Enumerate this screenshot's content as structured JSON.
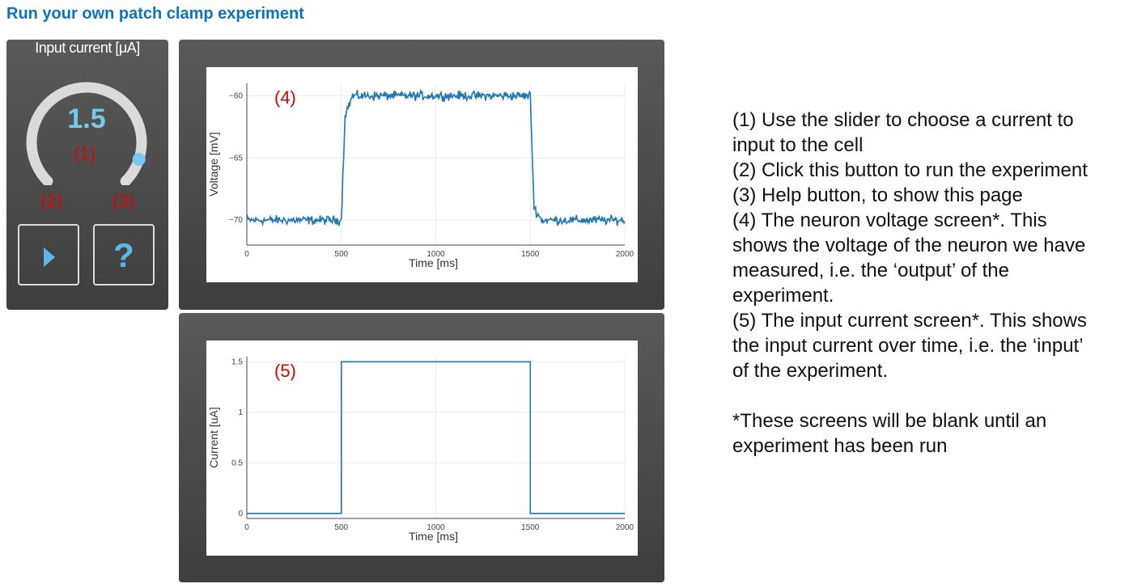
{
  "page": {
    "title": "Run your own patch clamp experiment"
  },
  "controls": {
    "title": "Input current [μA]",
    "slider_value": "1.5",
    "slider_fraction": 0.9,
    "run_icon": "play-icon",
    "help_glyph": "?",
    "annotations": {
      "slider": "(1)",
      "run": "(2)",
      "help": "(3)"
    }
  },
  "plots": {
    "voltage": {
      "annotation": "(4)",
      "ylabel": "Voltage [mV]",
      "xlabel": "Time [ms]",
      "color": "#1f77b4",
      "xticks": [
        "0",
        "500",
        "1000",
        "1500",
        "2000"
      ],
      "yticks": [
        "−60",
        "−65",
        "−70"
      ]
    },
    "current": {
      "annotation": "(5)",
      "ylabel": "Current [uA]",
      "xlabel": "Time [ms]",
      "color": "#1f77b4",
      "xticks": [
        "0",
        "500",
        "1000",
        "1500",
        "2000"
      ],
      "yticks": [
        "1.5",
        "1",
        "0.5",
        "0"
      ]
    }
  },
  "chart_data": [
    {
      "type": "line",
      "xlabel": "Time [ms]",
      "ylabel": "Voltage [mV]",
      "xlim": [
        0,
        2000
      ],
      "ylim": [
        -72,
        -59
      ],
      "grid": true,
      "x": [
        0,
        490,
        500,
        520,
        560,
        1490,
        1500,
        1520,
        1560,
        2000
      ],
      "y": [
        -70,
        -70,
        -70,
        -61.5,
        -60,
        -60,
        -60,
        -69,
        -70,
        -70
      ],
      "noise_mV": 0.35
    },
    {
      "type": "line",
      "xlabel": "Time [ms]",
      "ylabel": "Current [uA]",
      "xlim": [
        0,
        2000
      ],
      "ylim": [
        -0.05,
        1.55
      ],
      "grid": true,
      "x": [
        0,
        500,
        500,
        1500,
        1500,
        2000
      ],
      "y": [
        0,
        0,
        1.5,
        1.5,
        0,
        0
      ]
    }
  ],
  "instructions": {
    "lines": [
      "(1) Use the slider to choose a current to input to the cell",
      "(2) Click this button to run the experiment",
      "(3) Help button, to show this page",
      "(4) The neuron voltage screen*. This shows the voltage of the neuron we have measured, i.e. the ‘output’ of the experiment.",
      "(5) The input current screen*. This shows the input current over time, i.e. the ‘input’ of the experiment."
    ],
    "footnote": "*These screens will be blank until an experiment has been run"
  }
}
